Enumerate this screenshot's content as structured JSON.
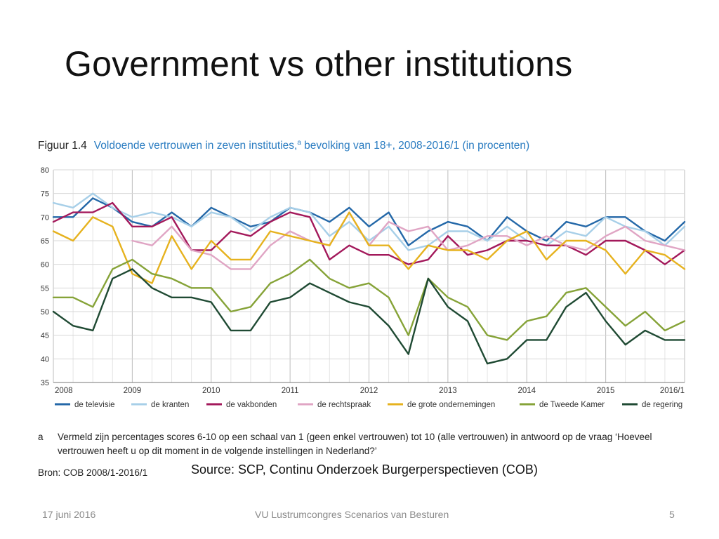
{
  "slide": {
    "title": "Government vs other institutions",
    "source": "Source: SCP, Continu Onderzoek Burgerperspectieven (COB)",
    "footer_date": "17 juni 2016",
    "footer_conference": "VU Lustrumcongres Scenarios van Besturen",
    "page_number": "5"
  },
  "figure": {
    "label": "Figuur 1.4",
    "title": "Voldoende vertrouwen in zeven instituties,",
    "title_sup": "a",
    "title_rest": " bevolking van 18+, 2008-2016/1 (in procenten)",
    "footnote_marker": "a",
    "footnote": "Vermeld zijn percentages scores 6-10 op een schaal van 1 (geen enkel vertrouwen) tot 10 (alle vertrouwen) in antwoord op de vraag ‘Hoeveel vertrouwen heeft u op dit moment in de volgende instellingen in Nederland?’",
    "source": "Bron: COB 2008/1-2016/1"
  },
  "chart_data": {
    "type": "line",
    "title": "Voldoende vertrouwen in zeven instituties, bevolking van 18+, 2008-2016/1 (in procenten)",
    "xlabel": "",
    "ylabel": "",
    "ylim": [
      35,
      80
    ],
    "yticks": [
      80,
      75,
      70,
      65,
      60,
      55,
      50,
      45,
      40,
      35
    ],
    "xticks": [
      "2008",
      "2009",
      "2010",
      "2011",
      "2012",
      "2013",
      "2014",
      "2015",
      "2016/1"
    ],
    "points_per_year": 4,
    "grid": true,
    "legend_position": "bottom",
    "series": [
      {
        "name": "de televisie",
        "color": "#2468a8",
        "values": [
          70,
          70,
          74,
          72,
          69,
          68,
          71,
          68,
          72,
          70,
          68,
          69,
          72,
          71,
          69,
          72,
          68,
          71,
          64,
          67,
          69,
          68,
          65,
          70,
          67,
          65,
          69,
          68,
          70,
          70,
          67,
          65,
          69
        ]
      },
      {
        "name": "de kranten",
        "color": "#a7cfe8",
        "values": [
          73,
          72,
          75,
          72,
          70,
          71,
          70,
          68,
          71,
          70,
          67,
          70,
          72,
          71,
          66,
          69,
          65,
          68,
          63,
          64,
          67,
          67,
          65,
          68,
          65,
          64,
          67,
          66,
          70,
          68,
          67,
          64,
          68
        ]
      },
      {
        "name": "de vakbonden",
        "color": "#a3195b",
        "values": [
          69,
          71,
          71,
          73,
          68,
          68,
          70,
          63,
          63,
          67,
          66,
          69,
          71,
          70,
          61,
          64,
          62,
          62,
          60,
          61,
          66,
          62,
          63,
          65,
          65,
          64,
          64,
          62,
          65,
          65,
          63,
          60,
          63
        ]
      },
      {
        "name": "de rechtspraak",
        "color": "#e0a5c4",
        "values": [
          null,
          null,
          null,
          null,
          65,
          64,
          68,
          63,
          62,
          59,
          59,
          64,
          67,
          65,
          64,
          71,
          64,
          69,
          67,
          68,
          63,
          64,
          66,
          66,
          64,
          66,
          64,
          63,
          66,
          68,
          65,
          64,
          63
        ]
      },
      {
        "name": "de grote ondernemingen",
        "color": "#e6b21e",
        "values": [
          67,
          65,
          70,
          68,
          58,
          56,
          66,
          59,
          65,
          61,
          61,
          67,
          66,
          65,
          64,
          71,
          64,
          64,
          59,
          64,
          63,
          63,
          61,
          65,
          67,
          61,
          65,
          65,
          63,
          58,
          63,
          62,
          59
        ]
      },
      {
        "name": "de Tweede Kamer",
        "color": "#86a338",
        "values": [
          53,
          53,
          51,
          59,
          61,
          58,
          57,
          55,
          55,
          50,
          51,
          56,
          58,
          61,
          57,
          55,
          56,
          53,
          45,
          57,
          53,
          51,
          45,
          44,
          48,
          49,
          54,
          55,
          51,
          47,
          50,
          46,
          48
        ]
      },
      {
        "name": "de regering",
        "color": "#1f4a33",
        "values": [
          50,
          47,
          46,
          57,
          59,
          55,
          53,
          53,
          52,
          46,
          46,
          52,
          53,
          56,
          54,
          52,
          51,
          47,
          41,
          57,
          51,
          48,
          39,
          40,
          44,
          44,
          51,
          54,
          48,
          43,
          46,
          44,
          44
        ]
      }
    ]
  }
}
